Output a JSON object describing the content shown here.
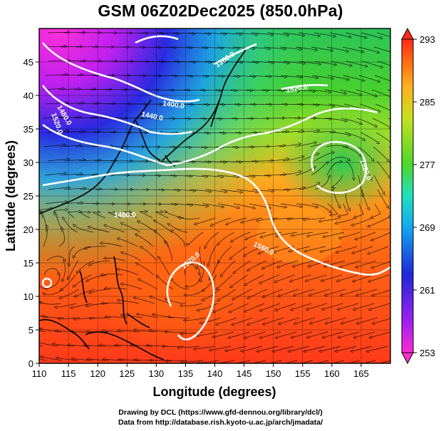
{
  "title": "GSM 06Z02Dec2025 (850.0hPa)",
  "map": {
    "x_axis": {
      "label": "Longitude (degrees)",
      "range": [
        110,
        170
      ],
      "ticks": [
        "110",
        "115",
        "120",
        "125",
        "130",
        "135",
        "140",
        "145",
        "150",
        "155",
        "160",
        "165"
      ]
    },
    "y_axis": {
      "label": "Latitude  (degrees)",
      "range": [
        0,
        50
      ],
      "ticks": [
        "0",
        "5",
        "10",
        "15",
        "20",
        "25",
        "30",
        "35",
        "40",
        "45"
      ]
    },
    "grid": true,
    "shading_field": "temperature (K)",
    "streamlines": true,
    "contour_labels": [
      "1480.0",
      "1520.0",
      "1400.0",
      "1440.0",
      "1360.0",
      "1520.0",
      "1520.0",
      "1560.0",
      "1520.0",
      "1480.0"
    ]
  },
  "colorbar": {
    "range": [
      253,
      293
    ],
    "tick_labels": [
      "293",
      "285",
      "277",
      "269",
      "261",
      "253"
    ]
  },
  "credits": {
    "line1": "Drawing by DCL (https://www.gfd-dennou.org/library/dcl/)",
    "line2": "Data from http://database.rish.kyoto-u.ac.jp/arch/jmadata/"
  }
}
